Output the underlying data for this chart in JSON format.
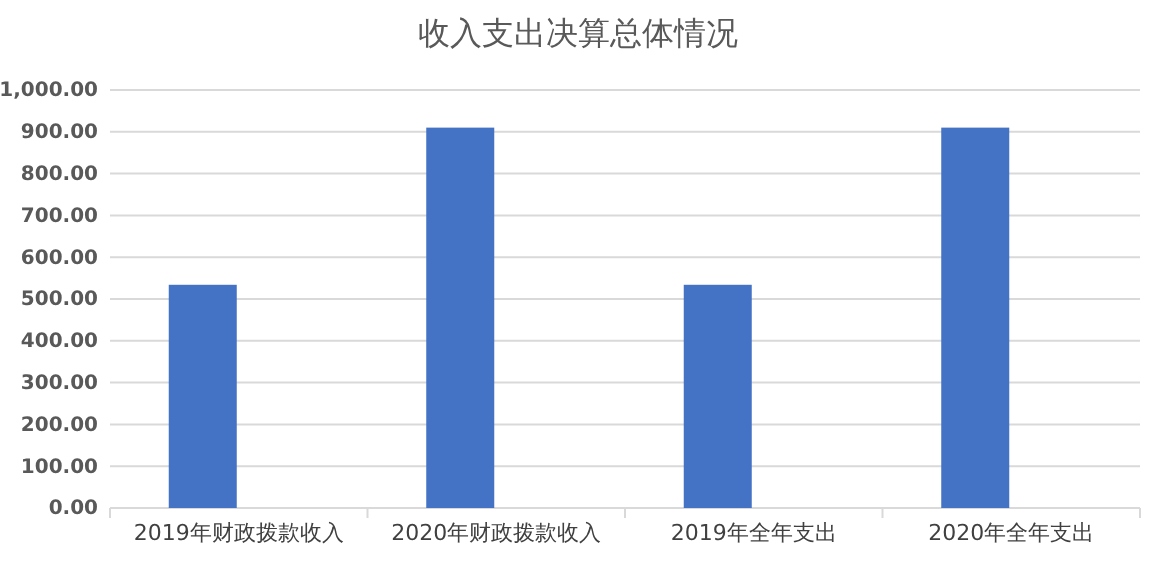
{
  "chart_data": {
    "type": "bar",
    "title": "收入支出决算总体情况",
    "categories": [
      "2019年财政拨款收入",
      "2020年财政拨款收入",
      "2019年全年支出",
      "2020年全年支出"
    ],
    "values": [
      534,
      910,
      534,
      910
    ],
    "color": "#4472c4",
    "ylim": [
      0,
      1000
    ],
    "yticks": [
      {
        "value": 0,
        "label": "0.00"
      },
      {
        "value": 100,
        "label": "100.00"
      },
      {
        "value": 200,
        "label": "200.00"
      },
      {
        "value": 300,
        "label": "300.00"
      },
      {
        "value": 400,
        "label": "400.00"
      },
      {
        "value": 500,
        "label": "500.00"
      },
      {
        "value": 600,
        "label": "600.00"
      },
      {
        "value": 700,
        "label": "700.00"
      },
      {
        "value": 800,
        "label": "800.00"
      },
      {
        "value": 900,
        "label": "900.00"
      },
      {
        "value": 1000,
        "label": "1,000.00"
      }
    ],
    "grid": "y"
  }
}
